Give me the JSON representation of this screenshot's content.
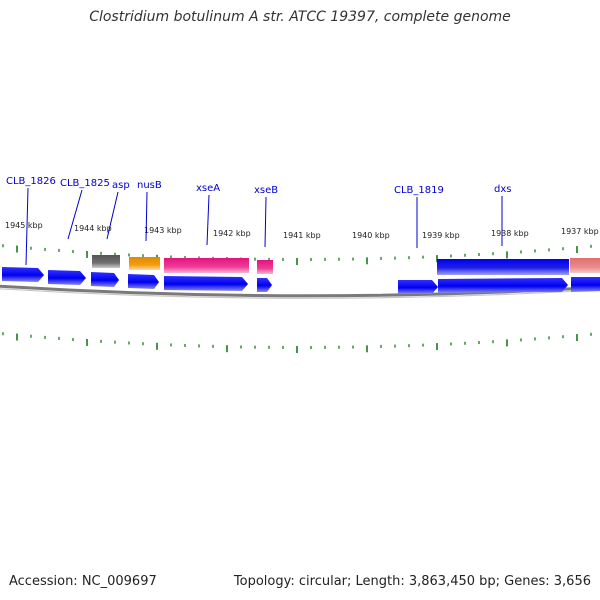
{
  "title": "Clostridium botulinum A str. ATCC 19397, complete genome",
  "footer": {
    "accession": "Accession: NC_009697",
    "stats": "Topology: circular; Length: 3,863,450 bp; Genes: 3,656"
  },
  "scale": {
    "ticks": [
      "1945 kbp",
      "1944 kbp",
      "1943 kbp",
      "1942 kbp",
      "1941 kbp",
      "1940 kbp",
      "1939 kbp",
      "1938 kbp",
      "1937 kbp"
    ]
  },
  "genes": [
    {
      "label": "CLB_1826"
    },
    {
      "label": "CLB_1825"
    },
    {
      "label": "asp"
    },
    {
      "label": "nusB"
    },
    {
      "label": "xseA"
    },
    {
      "label": "xseB"
    },
    {
      "label": "CLB_1819"
    },
    {
      "label": "dxs"
    }
  ],
  "colors": {
    "cds": "#0000ff",
    "tick": "#1a7a1a",
    "label": "#0000cc",
    "backbone": "#888888",
    "trna": "#6e6e6e",
    "orange": "#f39c12",
    "magenta": "#ee3d96",
    "salmon": "#e88a8a"
  }
}
